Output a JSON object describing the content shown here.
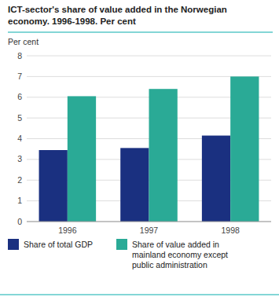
{
  "chart_data": {
    "type": "bar",
    "title": "ICT-sector's share of value added in the Norwegian\neconomy. 1996-1998. Per cent",
    "y_label": "Per cent",
    "categories": [
      "1996",
      "1997",
      "1998"
    ],
    "series": [
      {
        "name": "Share of total GDP",
        "color": "#1a3080",
        "values": [
          3.45,
          3.55,
          4.15
        ]
      },
      {
        "name": "Share of value added in\nmainland economy except\npublic administration",
        "color": "#2aaa96",
        "values": [
          6.05,
          6.4,
          7.0
        ]
      }
    ],
    "ylim": [
      0,
      8
    ],
    "yticks": [
      0,
      1,
      2,
      3,
      4,
      5,
      6,
      7,
      8
    ],
    "grid": true,
    "legend": "bottom"
  }
}
